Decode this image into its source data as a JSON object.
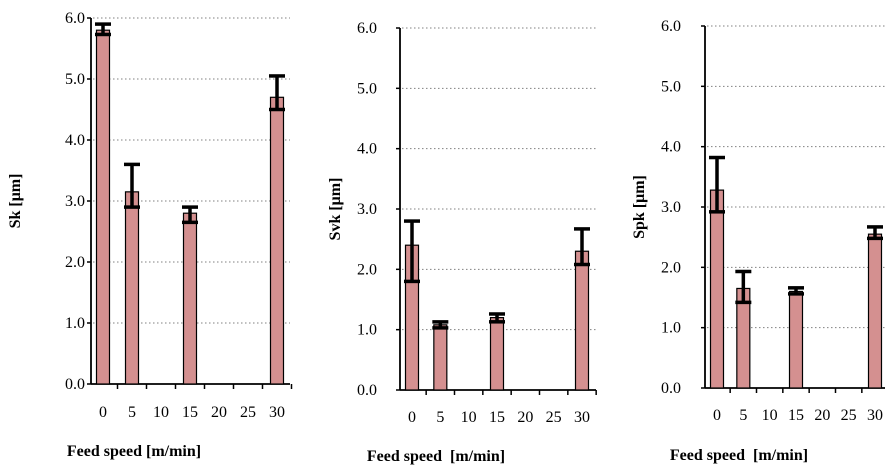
{
  "colors": {
    "bar_fill": "#d49090",
    "bar_stroke": "#000000",
    "grid": "#808080",
    "error_bar": "#000000"
  },
  "chart_data": [
    {
      "type": "bar",
      "title": "",
      "xlabel": "Feed speed [m/min]",
      "ylabel": "Sk [μm]",
      "x_ticks": [
        "0",
        "5",
        "10",
        "15",
        "20",
        "25",
        "30"
      ],
      "y_ticks": [
        "0.0",
        "1.0",
        "2.0",
        "3.0",
        "4.0",
        "5.0",
        "6.0"
      ],
      "ylim": [
        0,
        6.0
      ],
      "grid": "horizontal dotted",
      "categories": [
        "0",
        "5",
        "15",
        "30"
      ],
      "values": [
        5.8,
        3.15,
        2.8,
        4.7
      ],
      "error_low": [
        5.73,
        2.9,
        2.65,
        4.5
      ],
      "error_high": [
        5.9,
        3.6,
        2.9,
        5.05
      ]
    },
    {
      "type": "bar",
      "title": "",
      "xlabel": "Feed speed  [m/min]",
      "ylabel": "Svk  [μm]",
      "x_ticks": [
        "0",
        "5",
        "10",
        "15",
        "20",
        "25",
        "30"
      ],
      "y_ticks": [
        "0.0",
        "1.0",
        "2.0",
        "3.0",
        "4.0",
        "5.0",
        "6.0"
      ],
      "ylim": [
        0,
        6.0
      ],
      "grid": "horizontal dotted",
      "categories": [
        "0",
        "5",
        "15",
        "30"
      ],
      "values": [
        2.4,
        1.08,
        1.2,
        2.3
      ],
      "error_low": [
        1.8,
        1.03,
        1.13,
        2.08
      ],
      "error_high": [
        2.8,
        1.13,
        1.26,
        2.67
      ]
    },
    {
      "type": "bar",
      "title": "",
      "xlabel": "Feed speed  [m/min]",
      "ylabel": "Spk [μm]",
      "x_ticks": [
        "0",
        "5",
        "10",
        "15",
        "20",
        "25",
        "30"
      ],
      "y_ticks": [
        "0.0",
        "1.0",
        "2.0",
        "3.0",
        "4.0",
        "5.0",
        "6.0"
      ],
      "ylim": [
        0,
        6.0
      ],
      "grid": "horizontal dotted",
      "categories": [
        "0",
        "5",
        "15",
        "30"
      ],
      "values": [
        3.28,
        1.65,
        1.6,
        2.55
      ],
      "error_low": [
        2.92,
        1.42,
        1.56,
        2.48
      ],
      "error_high": [
        3.82,
        1.93,
        1.66,
        2.67
      ]
    }
  ]
}
